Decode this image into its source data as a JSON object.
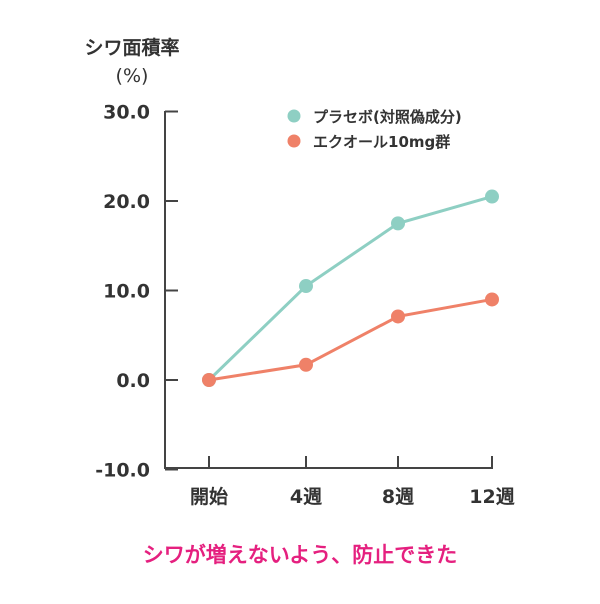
{
  "chart_data": {
    "type": "line",
    "ylabel": "シワ面積率",
    "yunit": "(%)",
    "categories": [
      "開始",
      "4週",
      "8週",
      "12週"
    ],
    "ylim": [
      -10,
      30
    ],
    "yticks": [
      "30.0",
      "20.0",
      "10.0",
      "0.0",
      "-10.0"
    ],
    "ytick_values": [
      30,
      20,
      10,
      0,
      -10
    ],
    "grid": false,
    "legend_position": "top-right",
    "series": [
      {
        "name": "プラセボ(対照偽成分)",
        "color": "#8ecfc3",
        "values": [
          0,
          10.5,
          17.5,
          20.5
        ]
      },
      {
        "name": "エクオール10mg群",
        "color": "#ef8168",
        "values": [
          0,
          1.7,
          7.1,
          9.0
        ]
      }
    ],
    "caption": "シワが増えないよう、防止できた",
    "caption_color": "#e5207f"
  }
}
